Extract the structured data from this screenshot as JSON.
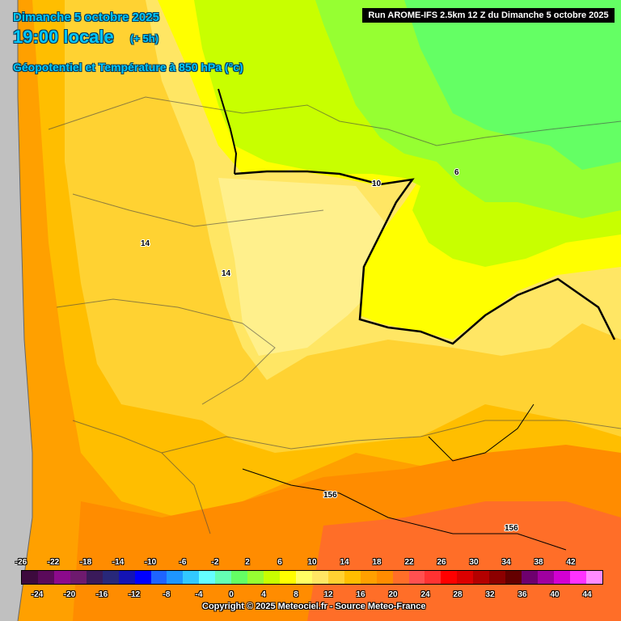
{
  "header": {
    "date": "Dimanche 5 octobre 2025",
    "time": "19:00 locale",
    "offset": "(+ 5h)",
    "field": "Géopotentiel et Température à 850 hPa (°c)"
  },
  "run_info": "Run AROME-IFS 2.5km 12 Z du Dimanche 5 octobre 2025",
  "map_labels": {
    "isotherm_10": "10",
    "isotherm_6": "6",
    "isotherm_14_a": "14",
    "isotherm_14_b": "14",
    "geopotential_156_a": "156",
    "geopotential_156_b": "156"
  },
  "legend": {
    "top_ticks": [
      "-26",
      "-22",
      "-18",
      "-14",
      "-10",
      "-6",
      "-2",
      "2",
      "6",
      "10",
      "14",
      "18",
      "22",
      "26",
      "30",
      "34",
      "38",
      "42"
    ],
    "bottom_ticks": [
      "-24",
      "-20",
      "-16",
      "-12",
      "-8",
      "-4",
      "0",
      "4",
      "8",
      "12",
      "16",
      "20",
      "24",
      "28",
      "32",
      "36",
      "40",
      "44"
    ],
    "colors": [
      "#3d0a3d",
      "#5a0a5a",
      "#8c0a8c",
      "#6e1a6e",
      "#3a1a5a",
      "#28287a",
      "#1414b4",
      "#0000ff",
      "#1e64ff",
      "#1e96ff",
      "#32c8ff",
      "#64ffff",
      "#64ffb4",
      "#64ff64",
      "#96ff32",
      "#c8ff00",
      "#ffff00",
      "#ffff64",
      "#ffe664",
      "#ffd232",
      "#ffbe00",
      "#ffa000",
      "#ff8c00",
      "#ff6e28",
      "#ff5050",
      "#ff3232",
      "#ff0000",
      "#dc0000",
      "#b40000",
      "#8c0000",
      "#640000",
      "#6e006e",
      "#a000a0",
      "#d200d2",
      "#ff32ff",
      "#ff8cff"
    ]
  },
  "copyright": "Copyright © 2025 Meteociel.fr - Source Meteo-France",
  "colors": {
    "title_text": "#00c8ff",
    "coast_bg": "#c0c0c0",
    "field_light_yellow": "#ffe680",
    "field_orange": "#ffa000"
  }
}
